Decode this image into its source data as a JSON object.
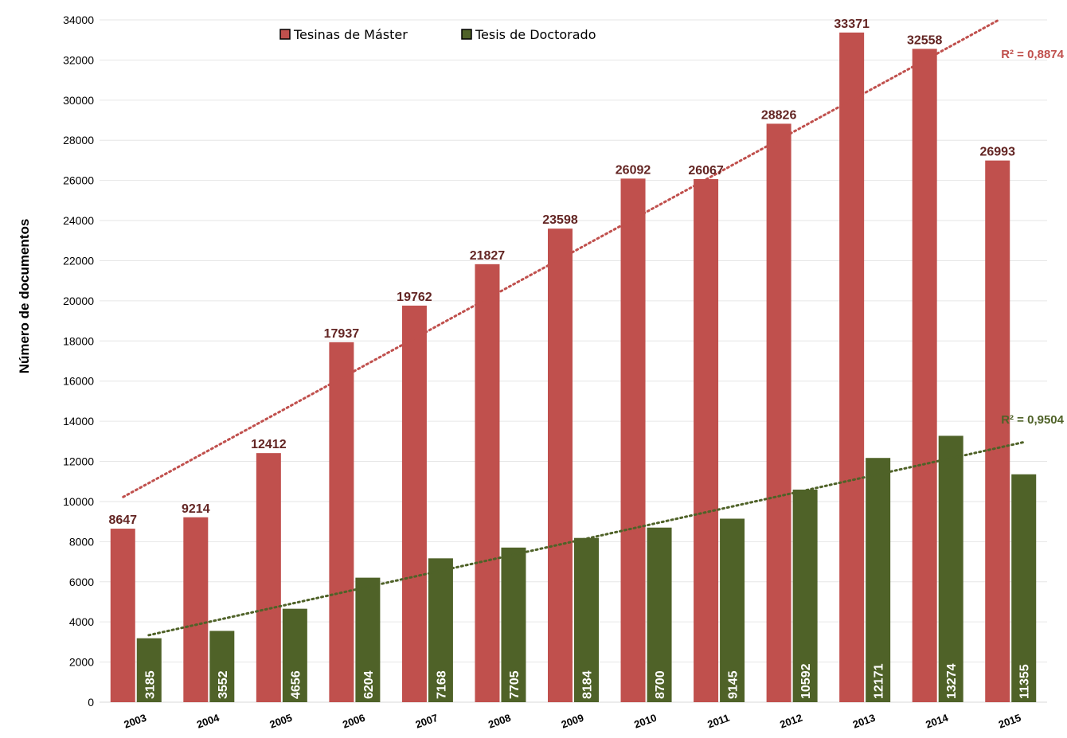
{
  "chart_data": {
    "type": "bar",
    "title": "",
    "xlabel": "",
    "ylabel": "Número de documentos",
    "ylim": [
      0,
      34000
    ],
    "yticks": [
      0,
      2000,
      4000,
      6000,
      8000,
      10000,
      12000,
      14000,
      16000,
      18000,
      20000,
      22000,
      24000,
      26000,
      28000,
      30000,
      32000,
      34000
    ],
    "grid": true,
    "legend_position": "top-center",
    "categories": [
      "2003",
      "2004",
      "2005",
      "2006",
      "2007",
      "2008",
      "2009",
      "2010",
      "2011",
      "2012",
      "2013",
      "2014",
      "2015"
    ],
    "series": [
      {
        "name": "Tesinas de Máster",
        "color": "#c0504d",
        "label_color": "#632523",
        "values": [
          8647,
          9214,
          12412,
          17937,
          19762,
          21827,
          23598,
          26092,
          26067,
          28826,
          33371,
          32558,
          26993
        ],
        "trendline": {
          "type": "linear",
          "r2_label": "R² = 0,8874"
        }
      },
      {
        "name": "Tesis de Doctorado",
        "color": "#4f6228",
        "label_color": "#ffffff",
        "values": [
          3185,
          3552,
          4656,
          6204,
          7168,
          7705,
          8184,
          8700,
          9145,
          10592,
          12171,
          13274,
          11355
        ],
        "trendline": {
          "type": "linear",
          "r2_label": "R² = 0,9504"
        }
      }
    ]
  }
}
